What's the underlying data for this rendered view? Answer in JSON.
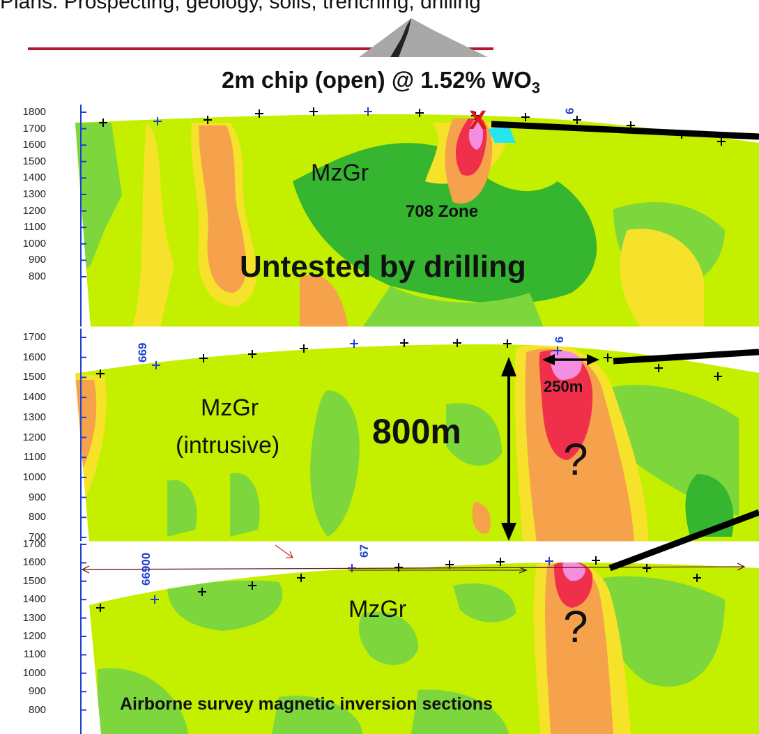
{
  "header": {
    "title": "Plans: Prospecting, geology, soils, trenching, drilling"
  },
  "colors": {
    "accent_rule": "#b0192e",
    "mountain": "#a8a8a8",
    "low_green": "#36b530",
    "mid_green": "#7dd63c",
    "base_yellow_green": "#c4f000",
    "yellow": "#f6e22a",
    "orange": "#f6a24c",
    "red": "#f0304a",
    "pink": "#f48ee0",
    "cyan": "#26e5ee"
  },
  "annotations": {
    "chip_result_prefix": "2m chip (open) @ 1.52% WO",
    "chip_result_subscript": "3",
    "chip_marker": "X",
    "zone_label": "708 Zone",
    "untested": "Untested by drilling",
    "section1_unit": "MzGr",
    "section2_unit": "MzGr",
    "section2_unit_note": "(intrusive)",
    "depth_extent": "800m",
    "width_extent": "250m",
    "question_mark": "?",
    "section3_unit": "MzGr",
    "footer_caption": "Airborne survey magnetic inversion sections"
  },
  "sections": [
    {
      "name": "section-1",
      "ticks": [
        "1800",
        "1700",
        "1600",
        "1500",
        "1400",
        "1300",
        "1200",
        "1100",
        "1000",
        "900",
        "800"
      ]
    },
    {
      "name": "section-2",
      "ticks": [
        "1700",
        "1600",
        "1500",
        "1400",
        "1300",
        "1200",
        "1100",
        "1000",
        "900",
        "800",
        "700"
      ]
    },
    {
      "name": "section-3",
      "ticks": [
        "1700",
        "1600",
        "1500",
        "1400",
        "1300",
        "1200",
        "1100",
        "1000",
        "900",
        "800"
      ]
    }
  ],
  "line_ids": {
    "s2_left": "669",
    "s3_left": "66900",
    "s3_mid": "67",
    "s1_right": "6",
    "s2_right": "6"
  }
}
